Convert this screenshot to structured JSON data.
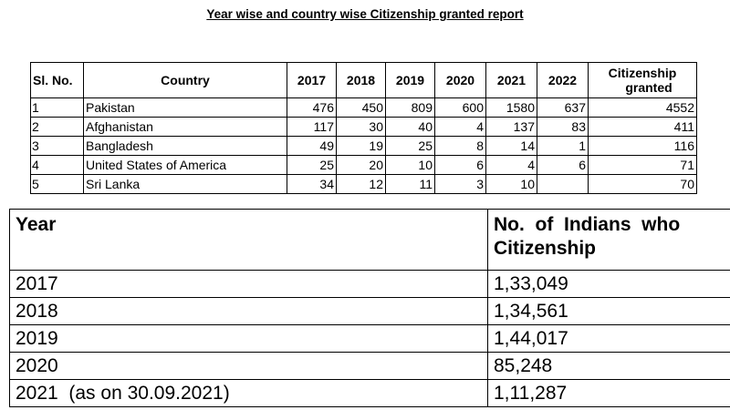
{
  "report": {
    "title": "Year wise and country wise Citizenship granted report",
    "headers": {
      "sl": "Sl. No.",
      "country": "Country",
      "y2017": "2017",
      "y2018": "2018",
      "y2019": "2019",
      "y2020": "2020",
      "y2021": "2021",
      "y2022": "2022",
      "granted_line1": "Citizenship",
      "granted_line2": "granted"
    },
    "rows": [
      {
        "sl": "1",
        "country": "Pakistan",
        "y2017": "476",
        "y2018": "450",
        "y2019": "809",
        "y2020": "600",
        "y2021": "1580",
        "y2022": "637",
        "granted": "4552"
      },
      {
        "sl": "2",
        "country": "Afghanistan",
        "y2017": "117",
        "y2018": "30",
        "y2019": "40",
        "y2020": "4",
        "y2021": "137",
        "y2022": "83",
        "granted": "411"
      },
      {
        "sl": "3",
        "country": "Bangladesh",
        "y2017": "49",
        "y2018": "19",
        "y2019": "25",
        "y2020": "8",
        "y2021": "14",
        "y2022": "1",
        "granted": "116"
      },
      {
        "sl": "4",
        "country": "United States of America",
        "y2017": "25",
        "y2018": "20",
        "y2019": "10",
        "y2020": "6",
        "y2021": "4",
        "y2022": "6",
        "granted": "71"
      },
      {
        "sl": "5",
        "country": "Sri Lanka",
        "y2017": "34",
        "y2018": "12",
        "y2019": "11",
        "y2020": "3",
        "y2021": "10",
        "y2022": "",
        "granted": "70"
      }
    ]
  },
  "indians": {
    "headers": {
      "year": "Year",
      "count_line1": "No.  of  Indians  who",
      "count_line2": "Citizenship"
    },
    "rows": [
      {
        "year": "2017",
        "count": "1,33,049"
      },
      {
        "year": "2018",
        "count": "1,34,561"
      },
      {
        "year": "2019",
        "count": "1,44,017"
      },
      {
        "year": "2020",
        "count": "85,248"
      },
      {
        "year": "2021  (as on 30.09.2021)",
        "count": "1,11,287"
      }
    ]
  }
}
